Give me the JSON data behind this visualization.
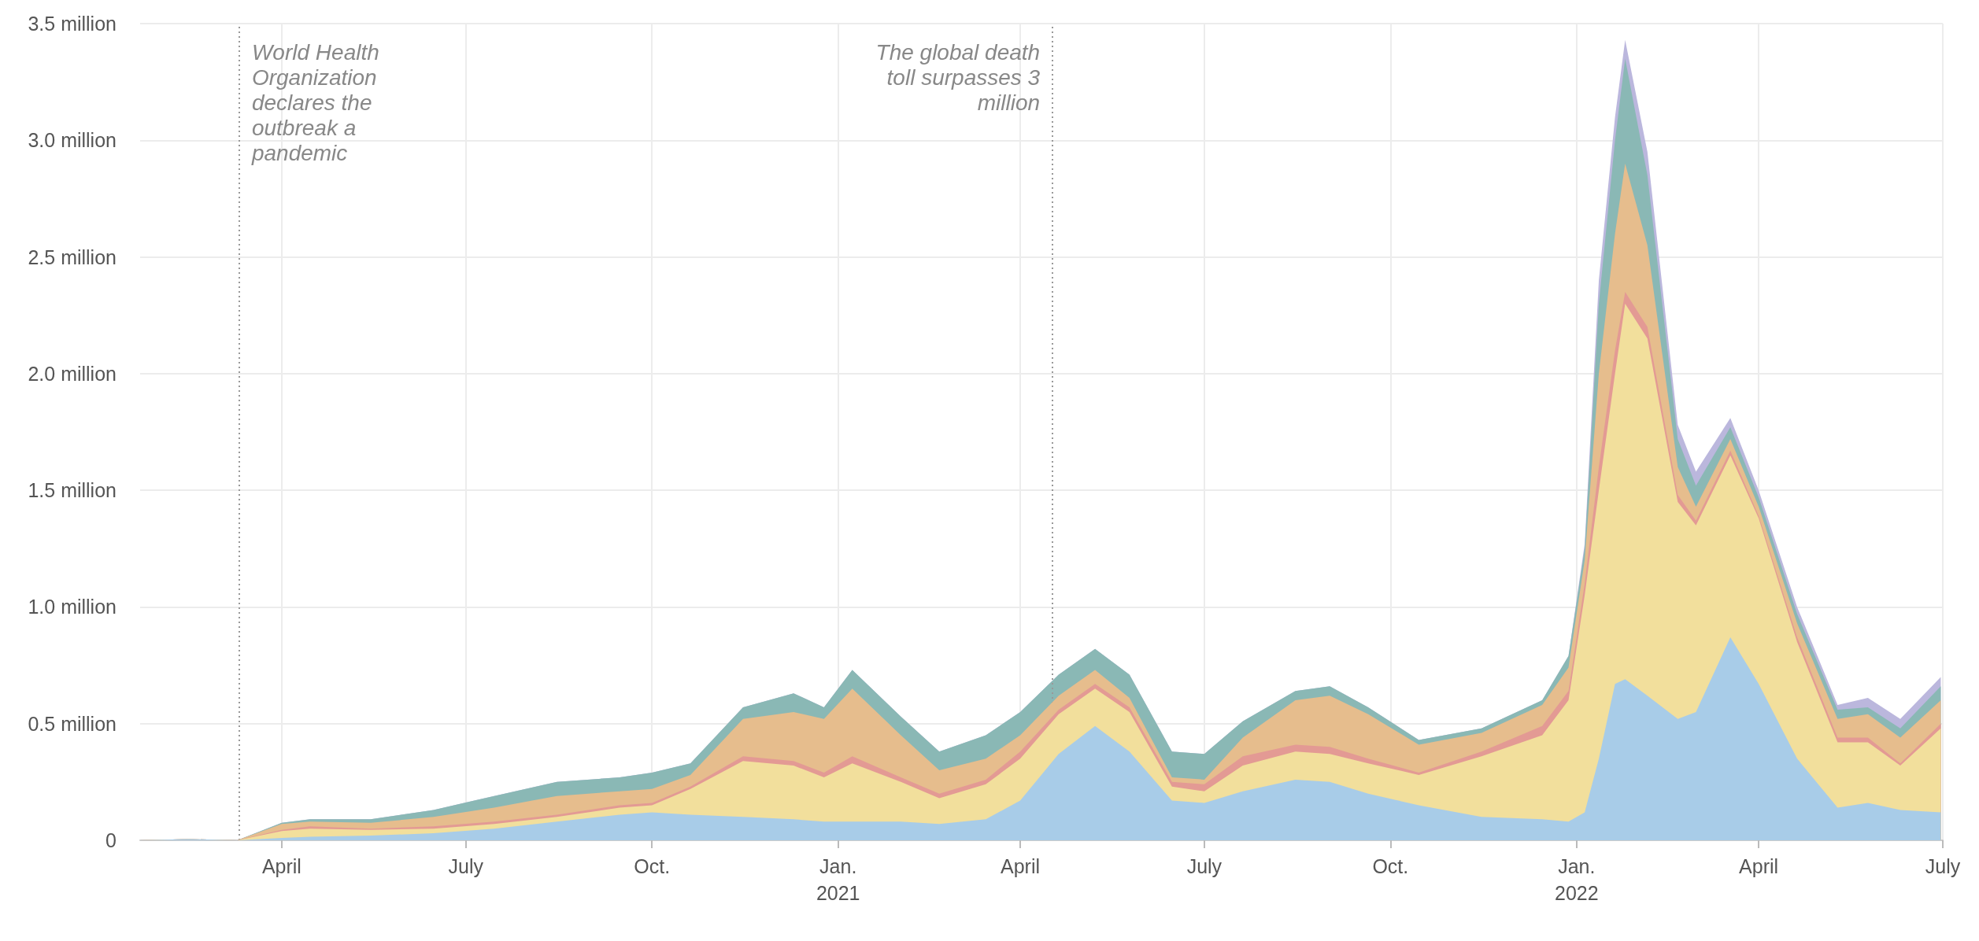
{
  "chart_data": {
    "type": "area",
    "stacked": true,
    "grid": true,
    "x": [
      "2020-01-22",
      "2020-02-15",
      "2020-03-10",
      "2020-04-01",
      "2020-04-15",
      "2020-05-15",
      "2020-06-15",
      "2020-07-15",
      "2020-08-15",
      "2020-09-15",
      "2020-10-01",
      "2020-10-20",
      "2020-11-15",
      "2020-12-10",
      "2020-12-25",
      "2021-01-08",
      "2021-02-01",
      "2021-02-20",
      "2021-03-15",
      "2021-04-01",
      "2021-04-20",
      "2021-05-08",
      "2021-05-25",
      "2021-06-15",
      "2021-07-01",
      "2021-07-20",
      "2021-08-15",
      "2021-09-01",
      "2021-09-20",
      "2021-10-15",
      "2021-11-15",
      "2021-12-15",
      "2021-12-28",
      "2022-01-05",
      "2022-01-12",
      "2022-01-20",
      "2022-01-25",
      "2022-02-05",
      "2022-02-20",
      "2022-03-01",
      "2022-03-18",
      "2022-04-01",
      "2022-04-20",
      "2022-05-10",
      "2022-05-25",
      "2022-06-10",
      "2022-06-30"
    ],
    "series": [
      {
        "color": "#a8cce8",
        "values": [
          0,
          0.005,
          0,
          0.01,
          0.015,
          0.02,
          0.03,
          0.05,
          0.08,
          0.11,
          0.12,
          0.11,
          0.1,
          0.09,
          0.08,
          0.08,
          0.08,
          0.07,
          0.09,
          0.17,
          0.37,
          0.49,
          0.38,
          0.17,
          0.16,
          0.21,
          0.26,
          0.25,
          0.2,
          0.15,
          0.1,
          0.09,
          0.08,
          0.12,
          0.35,
          0.67,
          0.69,
          0.62,
          0.52,
          0.55,
          0.87,
          0.67,
          0.35,
          0.14,
          0.16,
          0.13,
          0.12
        ]
      },
      {
        "color": "#f2df9c",
        "values": [
          0,
          0,
          0,
          0.03,
          0.035,
          0.025,
          0.02,
          0.02,
          0.02,
          0.03,
          0.03,
          0.11,
          0.24,
          0.23,
          0.19,
          0.25,
          0.17,
          0.11,
          0.15,
          0.18,
          0.17,
          0.16,
          0.17,
          0.06,
          0.05,
          0.11,
          0.12,
          0.12,
          0.13,
          0.13,
          0.26,
          0.36,
          0.52,
          0.93,
          1.15,
          1.33,
          1.61,
          1.53,
          0.93,
          0.8,
          0.78,
          0.71,
          0.5,
          0.28,
          0.26,
          0.19,
          0.36
        ]
      },
      {
        "color": "#e39a94",
        "values": [
          0,
          0,
          0,
          0.005,
          0.01,
          0.005,
          0.01,
          0.01,
          0.01,
          0.01,
          0.01,
          0.01,
          0.02,
          0.02,
          0.02,
          0.03,
          0.02,
          0.02,
          0.02,
          0.03,
          0.02,
          0.02,
          0.02,
          0.02,
          0.03,
          0.04,
          0.03,
          0.03,
          0.02,
          0.01,
          0.02,
          0.04,
          0.04,
          0.05,
          0.1,
          0.1,
          0.05,
          0.05,
          0.03,
          0.02,
          0.02,
          0.01,
          0.02,
          0.02,
          0.02,
          0.01,
          0.02
        ]
      },
      {
        "color": "#e6bd8d",
        "values": [
          0,
          0,
          0,
          0.025,
          0.02,
          0.025,
          0.04,
          0.06,
          0.08,
          0.06,
          0.06,
          0.05,
          0.16,
          0.21,
          0.23,
          0.29,
          0.18,
          0.1,
          0.09,
          0.07,
          0.06,
          0.06,
          0.04,
          0.02,
          0.02,
          0.08,
          0.19,
          0.22,
          0.19,
          0.12,
          0.08,
          0.09,
          0.1,
          0.1,
          0.4,
          0.5,
          0.55,
          0.35,
          0.12,
          0.06,
          0.05,
          0.04,
          0.06,
          0.08,
          0.1,
          0.11,
          0.1
        ]
      },
      {
        "color": "#8ab8b5",
        "values": [
          0,
          0,
          0,
          0.005,
          0.01,
          0.015,
          0.03,
          0.05,
          0.06,
          0.06,
          0.07,
          0.05,
          0.05,
          0.08,
          0.05,
          0.08,
          0.08,
          0.08,
          0.1,
          0.1,
          0.09,
          0.09,
          0.1,
          0.11,
          0.11,
          0.07,
          0.04,
          0.04,
          0.03,
          0.02,
          0.02,
          0.02,
          0.05,
          0.05,
          0.3,
          0.4,
          0.45,
          0.3,
          0.12,
          0.09,
          0.05,
          0.04,
          0.04,
          0.04,
          0.03,
          0.04,
          0.06
        ]
      },
      {
        "color": "#bbb7dd",
        "values": [
          0,
          0,
          0,
          0,
          0,
          0,
          0,
          0,
          0,
          0,
          0,
          0,
          0,
          0,
          0,
          0,
          0,
          0,
          0,
          0,
          0,
          0,
          0,
          0,
          0,
          0,
          0,
          0,
          0,
          0,
          0,
          0,
          0,
          0.02,
          0.1,
          0.1,
          0.08,
          0.1,
          0.06,
          0.06,
          0.04,
          0.03,
          0.03,
          0.02,
          0.04,
          0.04,
          0.04
        ]
      }
    ],
    "xlim": [
      "2020-01-22",
      "2022-07-01"
    ],
    "xticks": [
      {
        "value": "2020-04-01",
        "label": "April"
      },
      {
        "value": "2020-07-01",
        "label": "July"
      },
      {
        "value": "2020-10-01",
        "label": "Oct."
      },
      {
        "value": "2021-01-01",
        "label": "Jan.\n2021"
      },
      {
        "value": "2021-04-01",
        "label": "April"
      },
      {
        "value": "2021-07-01",
        "label": "July"
      },
      {
        "value": "2021-10-01",
        "label": "Oct."
      },
      {
        "value": "2022-01-01",
        "label": "Jan.\n2022"
      },
      {
        "value": "2022-04-01",
        "label": "April"
      },
      {
        "value": "2022-07-01",
        "label": "July"
      }
    ],
    "ylim": [
      0,
      3.5
    ],
    "yticks": [
      0,
      {
        "value": 0.5,
        "label": "0.5 million"
      },
      {
        "value": 1,
        "label": "1.0 million"
      },
      {
        "value": 1.5,
        "label": "1.5 million"
      },
      {
        "value": 2,
        "label": "2.0 million"
      },
      {
        "value": 2.5,
        "label": "2.5 million"
      },
      {
        "value": 3,
        "label": "3.0 million"
      },
      {
        "value": 3.5,
        "label": "3.5 million"
      }
    ],
    "ref_lines": [
      {
        "axis": "x",
        "value": "2020-03-11",
        "label": "World Health Organization declares the outbreak a pandemic",
        "color": "#999999",
        "line_style": "dotted"
      },
      {
        "axis": "x",
        "value": "2021-04-17",
        "label": "The global death toll surpasses 3 million",
        "color": "#999999",
        "line_style": "dotted"
      }
    ]
  }
}
